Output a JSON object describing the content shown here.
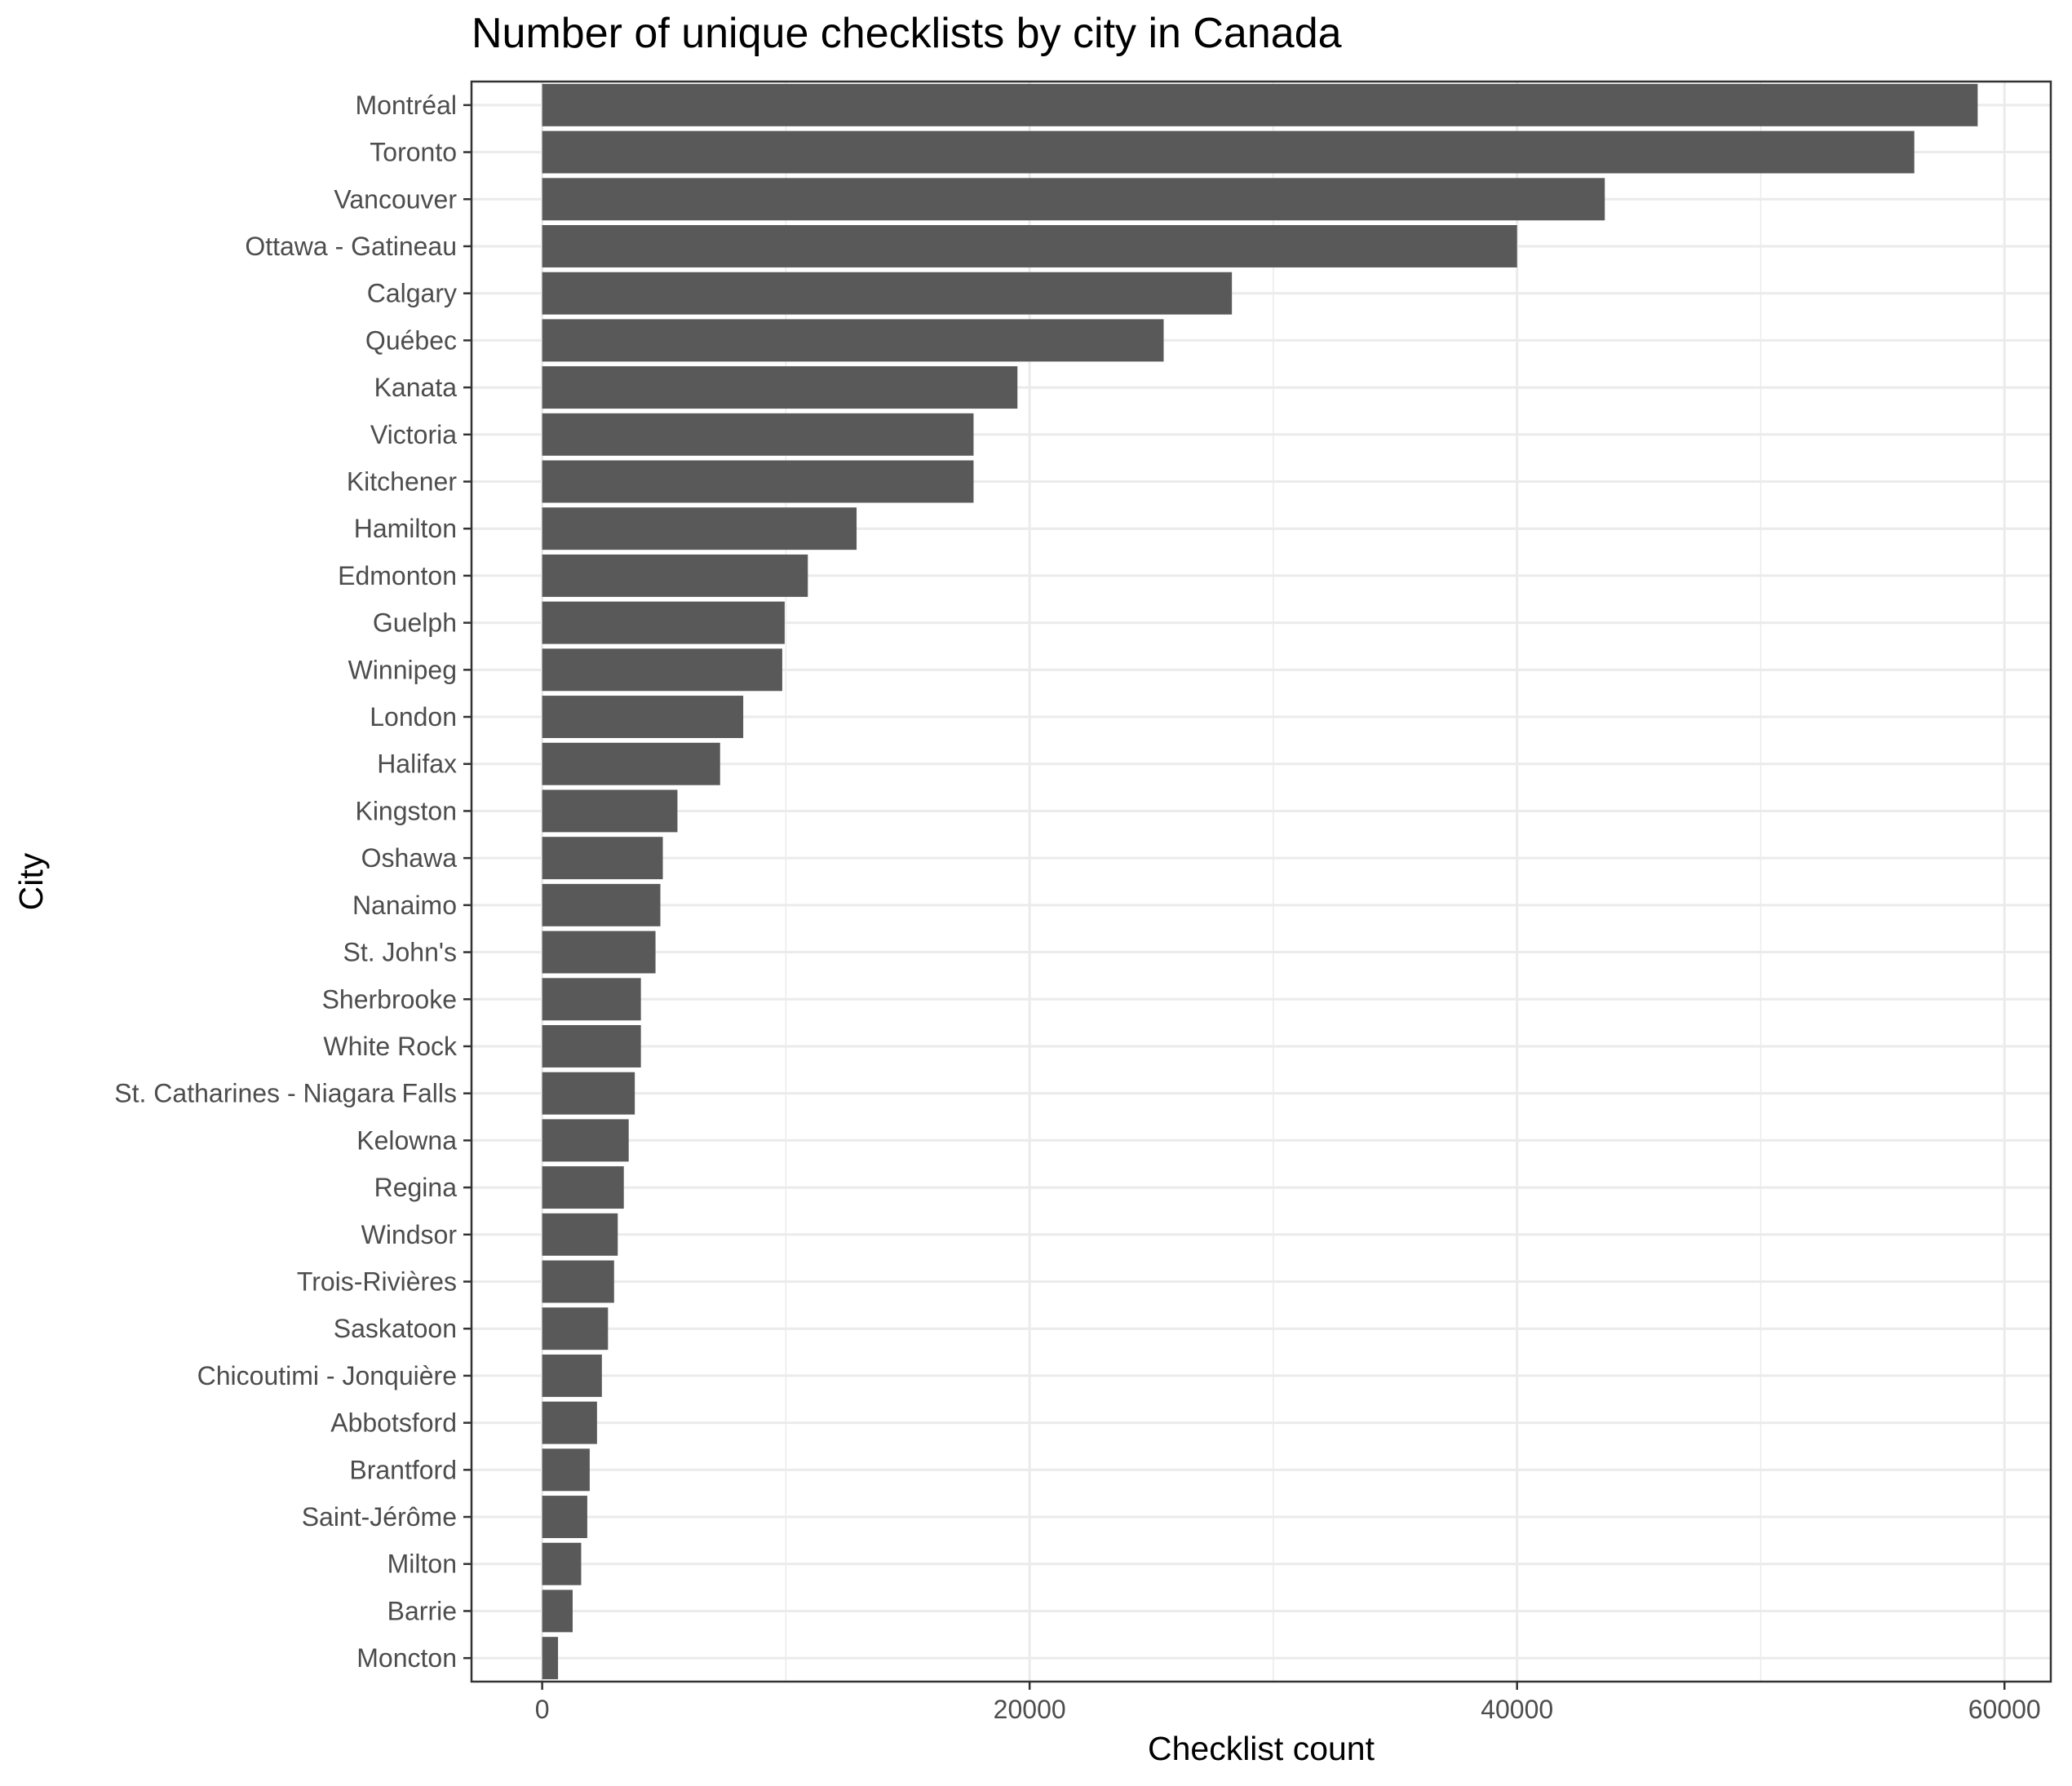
{
  "chart_data": {
    "type": "bar",
    "orientation": "horizontal",
    "title": "Number of unique checklists by city in Canada",
    "xlabel": "Checklist count",
    "ylabel": "City",
    "xlim": [
      -2900,
      61900
    ],
    "x_ticks": [
      0,
      20000,
      40000,
      60000
    ],
    "x_tick_labels": [
      "0",
      "20000",
      "40000",
      "60000"
    ],
    "grid": true,
    "legend": "none",
    "bar_color": "#595959",
    "categories": [
      "Montréal",
      "Toronto",
      "Vancouver",
      "Ottawa - Gatineau",
      "Calgary",
      "Québec",
      "Kanata",
      "Victoria",
      "Kitchener",
      "Hamilton",
      "Edmonton",
      "Guelph",
      "Winnipeg",
      "London",
      "Halifax",
      "Kingston",
      "Oshawa",
      "Nanaimo",
      "St. John's",
      "Sherbrooke",
      "White Rock",
      "St. Catharines - Niagara Falls",
      "Kelowna",
      "Regina",
      "Windsor",
      "Trois-Rivières",
      "Saskatoon",
      "Chicoutimi - Jonquière",
      "Abbotsford",
      "Brantford",
      "Saint-Jérôme",
      "Milton",
      "Barrie",
      "Moncton"
    ],
    "values": [
      58900,
      56300,
      43600,
      40000,
      28300,
      25500,
      19500,
      17700,
      17700,
      12900,
      10900,
      9950,
      9850,
      8250,
      7300,
      5550,
      4950,
      4850,
      4650,
      4050,
      4050,
      3800,
      3550,
      3350,
      3100,
      2950,
      2700,
      2450,
      2250,
      1950,
      1850,
      1600,
      1250,
      650
    ]
  }
}
